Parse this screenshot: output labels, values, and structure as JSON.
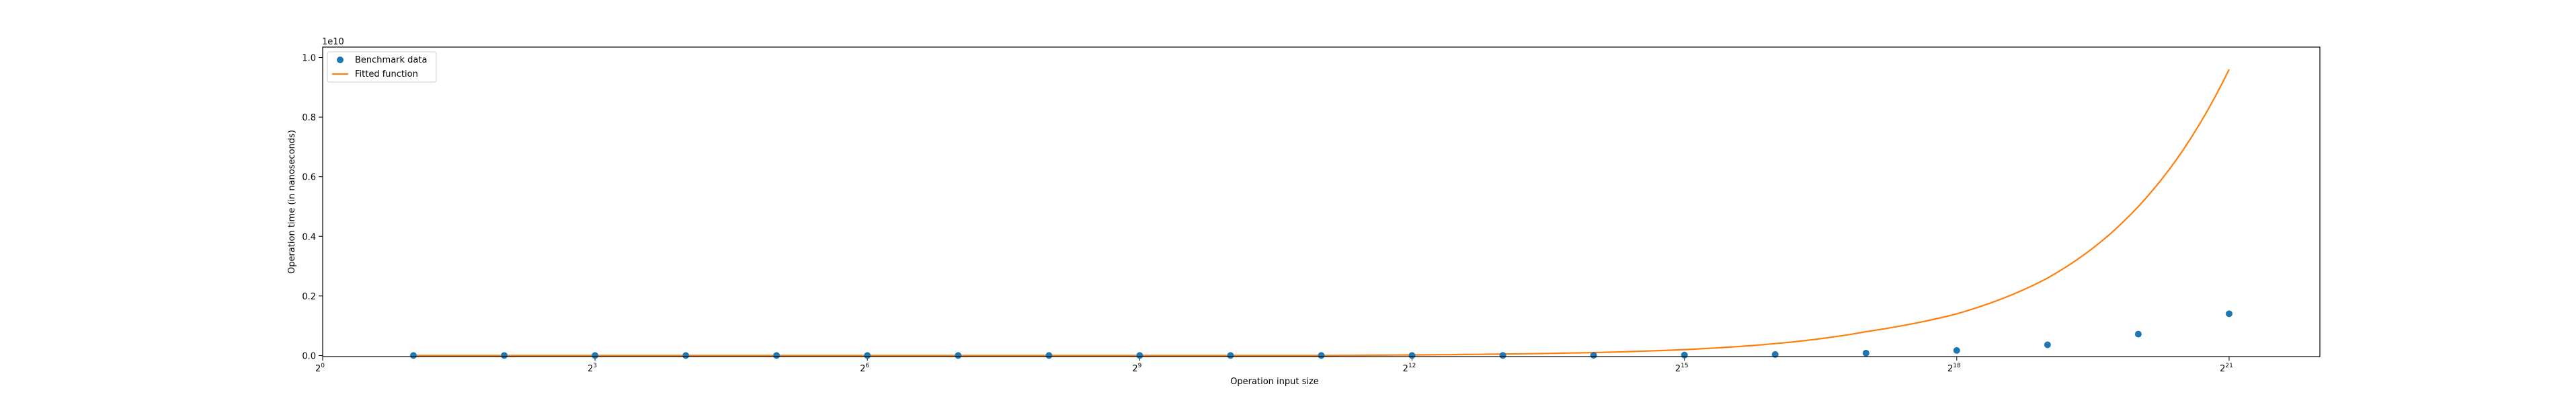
{
  "chart_data": {
    "type": "scatter",
    "xlabel": "Operation input size",
    "ylabel": "Operation time (in nanoseconds)",
    "x_scale": "log2",
    "x_range": [
      1,
      4194304
    ],
    "y_range": [
      -35000000,
      10350000000
    ],
    "y_offset_label": "1e10",
    "x_tick_base": "2",
    "x_ticks": [
      {
        "exp": "0",
        "value": 1
      },
      {
        "exp": "3",
        "value": 8
      },
      {
        "exp": "6",
        "value": 64
      },
      {
        "exp": "9",
        "value": 512
      },
      {
        "exp": "12",
        "value": 4096
      },
      {
        "exp": "15",
        "value": 32768
      },
      {
        "exp": "18",
        "value": 262144
      },
      {
        "exp": "21",
        "value": 2097152
      }
    ],
    "y_ticks": [
      {
        "label": "0.0",
        "value": 0
      },
      {
        "label": "0.2",
        "value": 2000000000
      },
      {
        "label": "0.4",
        "value": 4000000000
      },
      {
        "label": "0.6",
        "value": 6000000000
      },
      {
        "label": "0.8",
        "value": 8000000000
      },
      {
        "label": "1.0",
        "value": 10000000000
      }
    ],
    "grid": false,
    "legend_position": "top-left",
    "series": [
      {
        "name": "Benchmark data",
        "kind": "scatter",
        "color": "#1f77b4",
        "x": [
          2,
          4,
          8,
          16,
          32,
          64,
          128,
          256,
          512,
          1024,
          2048,
          4096,
          8192,
          16384,
          32768,
          65536,
          131072,
          262144,
          524288,
          1048576,
          2097152
        ],
        "y": [
          70,
          140,
          290,
          580,
          1150,
          2300,
          4600,
          9200,
          18500,
          37000,
          74000,
          1500000,
          3500000,
          7000000,
          15000000,
          35000000,
          80000000,
          170000000,
          360000000,
          720000000,
          1400000000
        ]
      },
      {
        "name": "Fitted function",
        "kind": "line",
        "color": "#ff7f0e",
        "x": [
          2,
          4,
          8,
          16,
          32,
          64,
          128,
          256,
          512,
          1024,
          2048,
          4096,
          8192,
          16384,
          32768,
          65536,
          131072,
          262144,
          524288,
          1048576,
          2097152
        ],
        "y": [
          0,
          0,
          0,
          0,
          0,
          0,
          0,
          0,
          0,
          0,
          0,
          20000000,
          50000000,
          100000000,
          200000000,
          400000000,
          800000000,
          1400000000,
          2600000000,
          5000000000,
          9600000000
        ]
      }
    ]
  }
}
